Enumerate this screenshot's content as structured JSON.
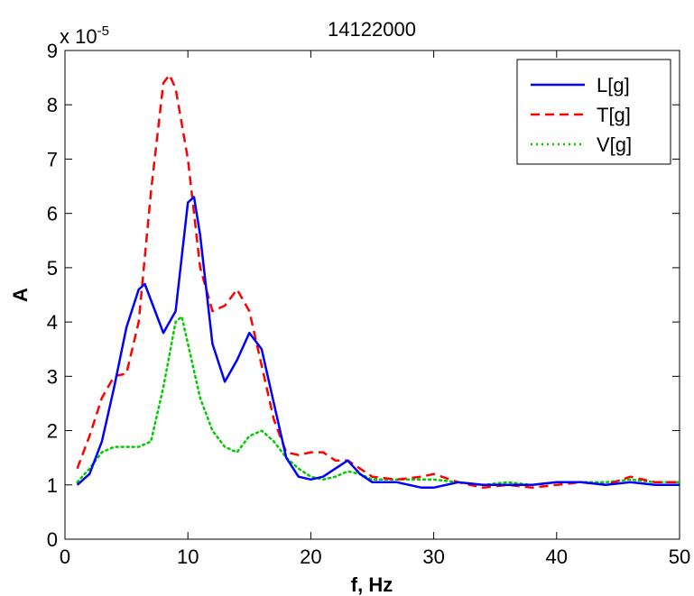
{
  "chart_data": {
    "type": "line",
    "title": "14122000",
    "xlabel": "f, Hz",
    "ylabel": "A",
    "y_multiplier_label": "x 10",
    "y_multiplier_exponent": "-5",
    "xlim": [
      0,
      50
    ],
    "ylim": [
      0,
      9
    ],
    "x_ticks": [
      0,
      10,
      20,
      30,
      40,
      50
    ],
    "y_ticks": [
      0,
      1,
      2,
      3,
      4,
      5,
      6,
      7,
      8,
      9
    ],
    "grid": false,
    "legend_position": "top-right",
    "series": [
      {
        "name": "L[g]",
        "color": "#0000ff",
        "style": "solid",
        "points": [
          [
            1,
            1.0
          ],
          [
            2,
            1.2
          ],
          [
            3,
            1.8
          ],
          [
            4,
            2.8
          ],
          [
            5,
            3.9
          ],
          [
            6,
            4.6
          ],
          [
            6.5,
            4.7
          ],
          [
            7,
            4.4
          ],
          [
            8,
            3.8
          ],
          [
            9,
            4.2
          ],
          [
            10,
            6.2
          ],
          [
            10.5,
            6.3
          ],
          [
            11,
            5.6
          ],
          [
            12,
            3.6
          ],
          [
            13,
            2.9
          ],
          [
            14,
            3.3
          ],
          [
            15,
            3.8
          ],
          [
            16,
            3.5
          ],
          [
            17,
            2.5
          ],
          [
            18,
            1.5
          ],
          [
            19,
            1.15
          ],
          [
            20,
            1.1
          ],
          [
            21,
            1.15
          ],
          [
            22,
            1.3
          ],
          [
            23,
            1.45
          ],
          [
            24,
            1.2
          ],
          [
            25,
            1.05
          ],
          [
            27,
            1.05
          ],
          [
            29,
            0.95
          ],
          [
            30,
            0.95
          ],
          [
            32,
            1.05
          ],
          [
            34,
            1.0
          ],
          [
            36,
            1.0
          ],
          [
            38,
            1.0
          ],
          [
            40,
            1.05
          ],
          [
            42,
            1.05
          ],
          [
            44,
            1.0
          ],
          [
            46,
            1.05
          ],
          [
            48,
            1.0
          ],
          [
            50,
            1.0
          ]
        ]
      },
      {
        "name": "T[g]",
        "color": "#ff0000",
        "style": "dashed",
        "points": [
          [
            1,
            1.3
          ],
          [
            2,
            1.9
          ],
          [
            3,
            2.6
          ],
          [
            4,
            3.0
          ],
          [
            5,
            3.05
          ],
          [
            6,
            4.0
          ],
          [
            7,
            6.4
          ],
          [
            8,
            8.4
          ],
          [
            8.5,
            8.55
          ],
          [
            9,
            8.3
          ],
          [
            10,
            7.0
          ],
          [
            11,
            5.0
          ],
          [
            12,
            4.2
          ],
          [
            13,
            4.3
          ],
          [
            14,
            4.6
          ],
          [
            15,
            4.2
          ],
          [
            16,
            3.2
          ],
          [
            17,
            2.2
          ],
          [
            18,
            1.6
          ],
          [
            19,
            1.55
          ],
          [
            20,
            1.6
          ],
          [
            21,
            1.6
          ],
          [
            22,
            1.45
          ],
          [
            23,
            1.45
          ],
          [
            24,
            1.3
          ],
          [
            25,
            1.15
          ],
          [
            27,
            1.1
          ],
          [
            29,
            1.15
          ],
          [
            30,
            1.2
          ],
          [
            32,
            1.05
          ],
          [
            34,
            0.95
          ],
          [
            36,
            1.0
          ],
          [
            38,
            0.95
          ],
          [
            40,
            1.0
          ],
          [
            42,
            1.05
          ],
          [
            44,
            1.0
          ],
          [
            46,
            1.15
          ],
          [
            48,
            1.05
          ],
          [
            50,
            1.05
          ]
        ]
      },
      {
        "name": "V[g]",
        "color": "#00cc00",
        "style": "dotted",
        "points": [
          [
            1,
            1.05
          ],
          [
            2,
            1.3
          ],
          [
            3,
            1.6
          ],
          [
            4,
            1.7
          ],
          [
            5,
            1.7
          ],
          [
            6,
            1.7
          ],
          [
            7,
            1.8
          ],
          [
            8,
            2.8
          ],
          [
            9,
            4.0
          ],
          [
            9.5,
            4.1
          ],
          [
            10,
            3.6
          ],
          [
            11,
            2.6
          ],
          [
            12,
            2.0
          ],
          [
            13,
            1.7
          ],
          [
            14,
            1.6
          ],
          [
            15,
            1.9
          ],
          [
            16,
            2.0
          ],
          [
            17,
            1.8
          ],
          [
            18,
            1.5
          ],
          [
            19,
            1.3
          ],
          [
            20,
            1.15
          ],
          [
            21,
            1.1
          ],
          [
            22,
            1.15
          ],
          [
            23,
            1.25
          ],
          [
            24,
            1.2
          ],
          [
            25,
            1.1
          ],
          [
            27,
            1.1
          ],
          [
            29,
            1.1
          ],
          [
            30,
            1.1
          ],
          [
            32,
            1.05
          ],
          [
            34,
            1.0
          ],
          [
            36,
            1.05
          ],
          [
            38,
            1.0
          ],
          [
            40,
            1.05
          ],
          [
            42,
            1.05
          ],
          [
            44,
            1.05
          ],
          [
            46,
            1.1
          ],
          [
            48,
            1.05
          ],
          [
            50,
            1.05
          ]
        ]
      }
    ]
  }
}
